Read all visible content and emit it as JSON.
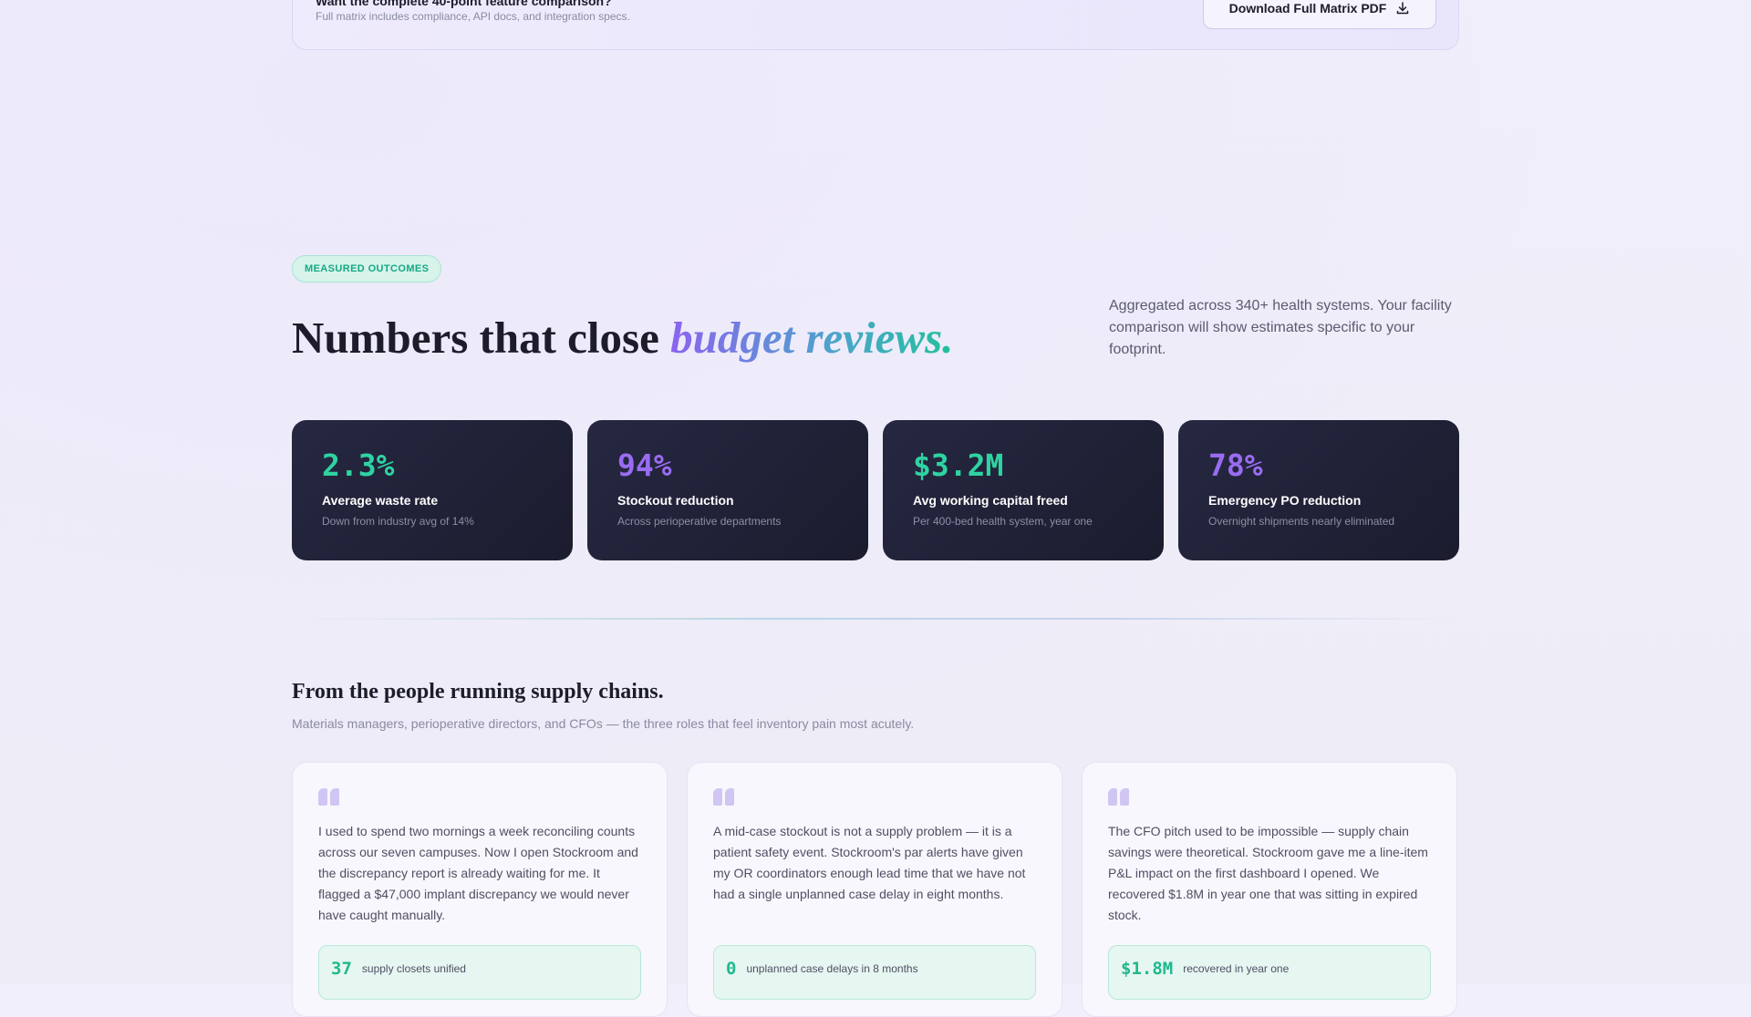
{
  "banner": {
    "title": "Want the complete 40-point feature comparison?",
    "subtitle": "Full matrix includes compliance, API docs, and integration specs.",
    "download_label": "Download Full Matrix PDF",
    "download_icon": "download-icon"
  },
  "outcomes": {
    "pill": "MEASURED OUTCOMES",
    "headline_plain": "Numbers that close ",
    "headline_accent": "budget reviews.",
    "aside": "Aggregated across 340+ health systems. Your facility comparison will show estimates specific to your footprint.",
    "stats": [
      {
        "value": "2.3%",
        "label": "Average waste rate",
        "sub": "Down from industry avg of 14%",
        "color": "#2fd3a2"
      },
      {
        "value": "94%",
        "label": "Stockout reduction",
        "sub": "Across perioperative departments",
        "color": "#9a6cf2"
      },
      {
        "value": "$3.2M",
        "label": "Avg working capital freed",
        "sub": "Per 400-bed health system, year one",
        "color": "#2fd3a2"
      },
      {
        "value": "78%",
        "label": "Emergency PO reduction",
        "sub": "Overnight shipments nearly eliminated",
        "color": "#9a6cf2"
      }
    ]
  },
  "testimonials": {
    "title": "From the people running supply chains.",
    "subtitle": "Materials managers, perioperative directors, and CFOs — the three roles that feel inventory pain most acutely.",
    "items": [
      {
        "quote_icon": "quote-icon",
        "text": "I used to spend two mornings a week reconciling counts across our seven campuses. Now I open Stockroom and the discrepancy report is already waiting for me. It flagged a $47,000 implant discrepancy we would never have caught manually.",
        "metric_value": "37",
        "metric_label": "supply closets unified"
      },
      {
        "quote_icon": "quote-icon",
        "text": "A mid-case stockout is not a supply problem — it is a patient safety event. Stockroom's par alerts have given my OR coordinators enough lead time that we have not had a single unplanned case delay in eight months.",
        "metric_value": "0",
        "metric_label": "unplanned case delays in 8 months"
      },
      {
        "quote_icon": "quote-icon",
        "text": "The CFO pitch used to be impossible — supply chain savings were theoretical. Stockroom gave me a line-item P&L impact on the first dashboard I opened. We recovered $1.8M in year one that was sitting in expired stock.",
        "metric_value": "$1.8M",
        "metric_label": "recovered in year one"
      }
    ]
  }
}
